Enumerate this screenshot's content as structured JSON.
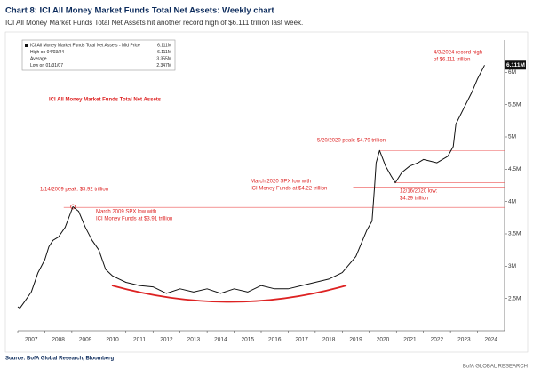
{
  "chart_data": {
    "type": "line",
    "title": "Chart 8: ICI All Money Market Funds Total Net Assets: Weekly chart",
    "subtitle": "ICI All Money Market Funds Total Net Assets hit another record high of $6.111 trillion last week.",
    "chart_label": "ICI All Money Market Funds Total Net Assets",
    "source": "Source: BofA Global Research, Bloomberg",
    "brand": "BofA GLOBAL RESEARCH",
    "legend_rows": [
      [
        "ICI All Money Market Funds Total Net Assets - Mid Price",
        "6.111M"
      ],
      [
        "High on 04/03/24",
        "6.111M"
      ],
      [
        "Average",
        "3.355M"
      ],
      [
        "Low on 01/31/07",
        "2.347M"
      ]
    ],
    "last_value_label": "6.111M",
    "series": [
      {
        "name": "ICI All Money Market Funds Total Net Assets",
        "color": "#111111",
        "x": [
          2007.0,
          2007.08,
          2007.25,
          2007.5,
          2007.75,
          2008.0,
          2008.15,
          2008.3,
          2008.5,
          2008.75,
          2009.04,
          2009.25,
          2009.5,
          2009.75,
          2010.0,
          2010.25,
          2010.5,
          2010.75,
          2011.0,
          2011.5,
          2012.0,
          2012.5,
          2013.0,
          2013.5,
          2014.0,
          2014.5,
          2015.0,
          2015.5,
          2016.0,
          2016.5,
          2017.0,
          2017.5,
          2018.0,
          2018.5,
          2019.0,
          2019.5,
          2019.9,
          2020.1,
          2020.19,
          2020.25,
          2020.38,
          2020.6,
          2020.8,
          2020.96,
          2021.2,
          2021.5,
          2021.8,
          2022.0,
          2022.5,
          2022.9,
          2023.1,
          2023.2,
          2023.5,
          2023.8,
          2024.0,
          2024.26
        ],
        "values": [
          2.37,
          2.35,
          2.45,
          2.6,
          2.9,
          3.1,
          3.3,
          3.4,
          3.45,
          3.6,
          3.92,
          3.85,
          3.6,
          3.4,
          3.25,
          2.95,
          2.85,
          2.8,
          2.75,
          2.7,
          2.68,
          2.58,
          2.65,
          2.6,
          2.65,
          2.58,
          2.65,
          2.6,
          2.7,
          2.65,
          2.65,
          2.7,
          2.75,
          2.8,
          2.9,
          3.15,
          3.55,
          3.7,
          4.22,
          4.6,
          4.79,
          4.55,
          4.4,
          4.29,
          4.45,
          4.55,
          4.6,
          4.65,
          4.6,
          4.7,
          4.85,
          5.2,
          5.45,
          5.7,
          5.9,
          6.111
        ]
      }
    ],
    "xlim": [
      2007,
      2025
    ],
    "xticks": [
      2007,
      2008,
      2009,
      2010,
      2011,
      2012,
      2013,
      2014,
      2015,
      2016,
      2017,
      2018,
      2019,
      2020,
      2021,
      2022,
      2023,
      2024
    ],
    "ylim": [
      2,
      6.5
    ],
    "yticks": [
      {
        "value": 2.5,
        "label": "2.5M"
      },
      {
        "value": 3,
        "label": "3M"
      },
      {
        "value": 3.5,
        "label": "3.5M"
      },
      {
        "value": 4,
        "label": "4M"
      },
      {
        "value": 4.5,
        "label": "4.5M"
      },
      {
        "value": 5,
        "label": "5M"
      },
      {
        "value": 5.5,
        "label": "5.5M"
      },
      {
        "value": 6,
        "label": "6M"
      }
    ],
    "annotations": [
      {
        "text": [
          "1/14/2009 peak: $3.92 trillion"
        ],
        "value": 3.92
      },
      {
        "text": [
          "March 2009 SPX low with",
          "ICI Money Funds at $3.91 trillion"
        ],
        "value": 3.91
      },
      {
        "text": [
          "5/20/2020 peak: $4.79 trillion"
        ],
        "value": 4.79
      },
      {
        "text": [
          "March 2020 SPX low with",
          "ICI Money Funds at $4.22 trillion"
        ],
        "value": 4.22
      },
      {
        "text": [
          "12/16/2020 low:",
          "$4.29 trillion"
        ],
        "value": 4.29
      },
      {
        "text": [
          "4/3/2024 record high",
          "of $6.111 trillion"
        ],
        "value": 6.111
      }
    ]
  }
}
